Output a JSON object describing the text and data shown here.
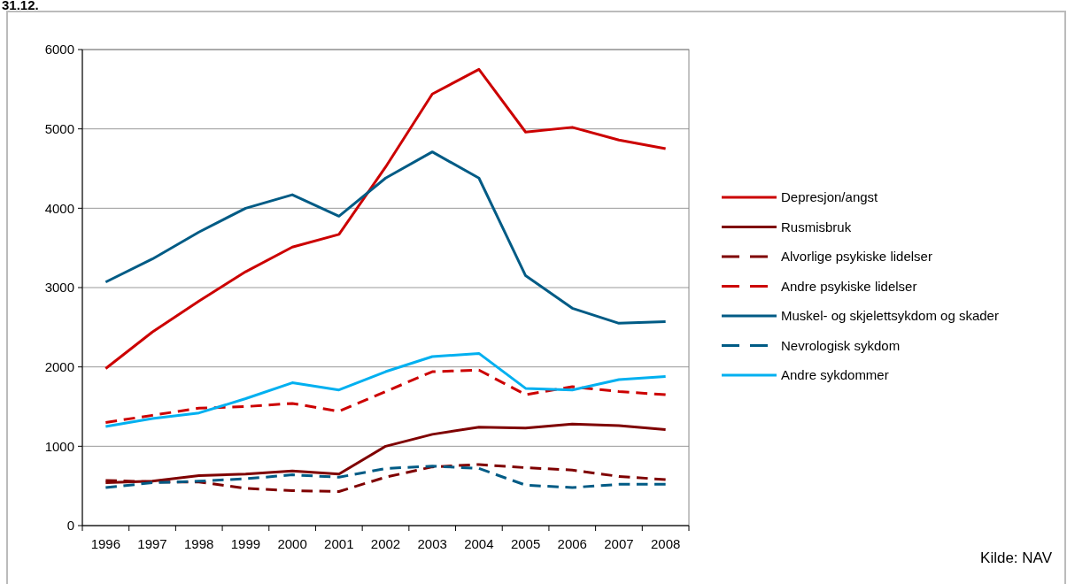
{
  "chart_data": {
    "type": "line",
    "title": "31.12.",
    "categories": [
      "1996",
      "1997",
      "1998",
      "1999",
      "2000",
      "2001",
      "2002",
      "2003",
      "2004",
      "2005",
      "2006",
      "2007",
      "2008"
    ],
    "series": [
      {
        "name": "Depresjon/angst",
        "color": "#cc0000",
        "line_style": "solid",
        "values": [
          1980,
          2440,
          2830,
          3200,
          3510,
          3670,
          4520,
          5440,
          5750,
          4960,
          5020,
          4860,
          4750
        ]
      },
      {
        "name": "Rusmisbruk",
        "color": "#7f0000",
        "line_style": "solid",
        "values": [
          540,
          560,
          630,
          650,
          690,
          650,
          1000,
          1150,
          1240,
          1230,
          1280,
          1260,
          1210
        ]
      },
      {
        "name": "Alvorlige psykiske lidelser",
        "color": "#7f0000",
        "line_style": "dashed",
        "values": [
          570,
          550,
          550,
          470,
          440,
          430,
          610,
          740,
          770,
          730,
          700,
          620,
          580
        ]
      },
      {
        "name": "Andre psykiske lidelser",
        "color": "#cc0000",
        "line_style": "dashed",
        "values": [
          1300,
          1390,
          1480,
          1500,
          1540,
          1440,
          1690,
          1940,
          1960,
          1650,
          1750,
          1690,
          1650
        ]
      },
      {
        "name": "Muskel- og skjelettsykdom og skader",
        "color": "#005b85",
        "line_style": "solid",
        "values": [
          3070,
          3360,
          3700,
          4000,
          4170,
          3900,
          4380,
          4710,
          4380,
          3150,
          2740,
          2550,
          2570
        ]
      },
      {
        "name": "Nevrologisk sykdom",
        "color": "#005b85",
        "line_style": "dashed",
        "values": [
          480,
          540,
          560,
          590,
          640,
          610,
          720,
          750,
          720,
          510,
          480,
          520,
          520
        ]
      },
      {
        "name": "Andre sykdommer",
        "color": "#00b0f0",
        "line_style": "solid",
        "values": [
          1250,
          1350,
          1420,
          1600,
          1800,
          1710,
          1940,
          2130,
          2170,
          1730,
          1710,
          1840,
          1880
        ]
      }
    ],
    "ylim": [
      0,
      6000
    ],
    "yticks": [
      0,
      1000,
      2000,
      3000,
      4000,
      5000,
      6000
    ],
    "grid": "y",
    "legend": "right",
    "annotations": [
      "Kilde: NAV"
    ]
  }
}
